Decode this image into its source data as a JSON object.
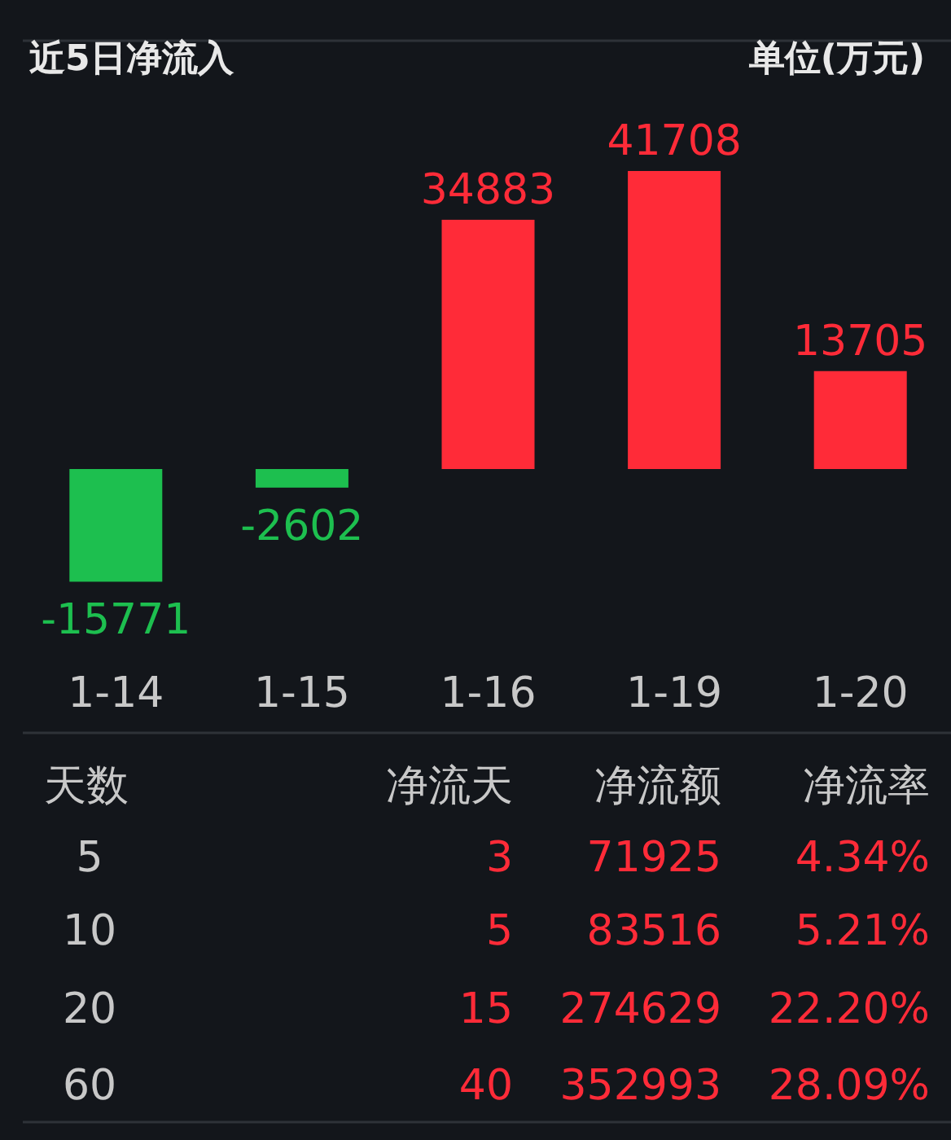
{
  "chart_data": [
    {
      "type": "bar",
      "title": "近5日净流入",
      "subtitle": "单位(万元)",
      "categories": [
        "1-14",
        "1-15",
        "1-16",
        "1-19",
        "1-20"
      ],
      "values": [
        -15771,
        -2602,
        34883,
        41708,
        13705
      ],
      "colors": [
        "#1dbf4f",
        "#1dbf4f",
        "#ff2b38",
        "#ff2b38",
        "#ff2b38"
      ],
      "data_labels": true
    },
    {
      "type": "other",
      "annotations": [
        "天数",
        "净流天",
        "净流额",
        "净流率",
        "5",
        "3",
        "71925",
        "4.34%",
        "10",
        "5",
        "83516",
        "5.21%",
        "20",
        "15",
        "274629",
        "22.20%",
        "60",
        "40",
        "352993",
        "28.09%"
      ]
    }
  ]
}
